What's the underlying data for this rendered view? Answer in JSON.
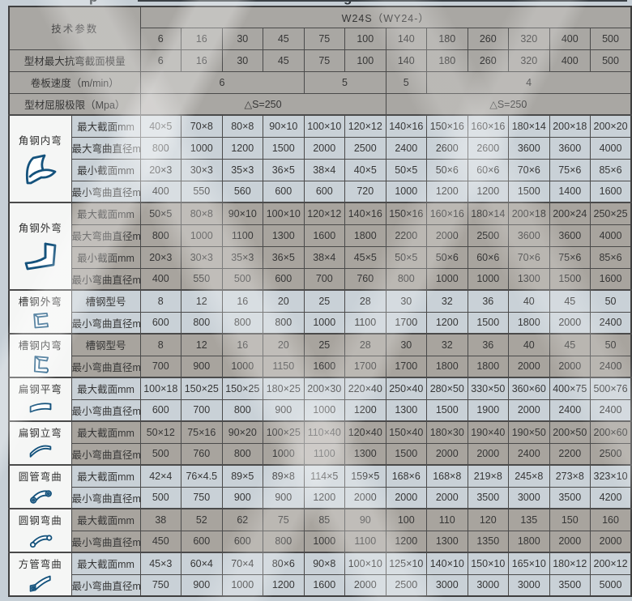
{
  "page": {
    "top_fragments": [
      "p",
      "g"
    ],
    "colors": {
      "background": "#c6cfd6",
      "head_cell": "#a9a7a3",
      "light_cell": "#c9d1d7",
      "dark_cell": "#a8a49e",
      "icon_cell": "#f5f6f5",
      "border": "#4a4a4a",
      "icon_stroke": "#14527c",
      "text": "#333333"
    }
  },
  "table": {
    "params_label": "技术参数",
    "series_header": "W24S（WY24-）",
    "model_columns": [
      "6",
      "16",
      "30",
      "45",
      "75",
      "100",
      "140",
      "180",
      "260",
      "320",
      "400",
      "500"
    ],
    "top_rows": [
      {
        "label": "型材最大抗弯截面模量",
        "type": "values",
        "values": [
          "6",
          "16",
          "30",
          "45",
          "75",
          "100",
          "140",
          "180",
          "260",
          "320",
          "400",
          "500"
        ]
      },
      {
        "label": "卷板速度（m/min）",
        "type": "spans",
        "spans": [
          {
            "value": "6",
            "cols": 4
          },
          {
            "value": "5",
            "cols": 2
          },
          {
            "value": "5",
            "cols": 1
          },
          {
            "value": "4",
            "cols": 5
          }
        ]
      },
      {
        "label": "型材屈服极限（Mpa）",
        "type": "spans",
        "spans": [
          {
            "value": "△S=250",
            "cols": 6
          },
          {
            "value": "△S=250",
            "cols": 6
          }
        ]
      }
    ],
    "sections": [
      {
        "title": "角钢内弯",
        "icon": "angle-steel-inner-bend-icon",
        "tone": "light",
        "rows": [
          {
            "label": "最大截面mm",
            "values": [
              "40×5",
              "70×8",
              "80×8",
              "90×10",
              "100×10",
              "120×12",
              "140×16",
              "150×16",
              "160×16",
              "180×14",
              "200×18",
              "200×20"
            ]
          },
          {
            "label": "最大弯曲直径mm",
            "values": [
              "800",
              "1000",
              "1200",
              "1500",
              "2000",
              "2500",
              "2400",
              "2600",
              "2600",
              "3600",
              "3600",
              "4000"
            ]
          },
          {
            "label": "最小截面mm",
            "values": [
              "20×3",
              "30×3",
              "35×3",
              "36×5",
              "38×4",
              "40×5",
              "50×5",
              "50×6",
              "60×6",
              "70×6",
              "75×6",
              "85×6"
            ]
          },
          {
            "label": "最小弯曲直径mm",
            "values": [
              "400",
              "550",
              "560",
              "600",
              "600",
              "720",
              "1000",
              "1200",
              "1200",
              "1500",
              "1400",
              "1600"
            ]
          }
        ]
      },
      {
        "title": "角钢外弯",
        "icon": "angle-steel-outer-bend-icon",
        "tone": "dark",
        "rows": [
          {
            "label": "最大截面mm",
            "values": [
              "50×5",
              "80×8",
              "90×10",
              "100×10",
              "120×12",
              "140×16",
              "150×16",
              "160×16",
              "180×14",
              "200×18",
              "200×24",
              "250×25"
            ]
          },
          {
            "label": "最大弯曲直径mm",
            "values": [
              "800",
              "1000",
              "1100",
              "1300",
              "1600",
              "1800",
              "2200",
              "2000",
              "2500",
              "3600",
              "3600",
              "4000"
            ]
          },
          {
            "label": "最小截面mm",
            "values": [
              "20×3",
              "30×3",
              "35×3",
              "36×5",
              "38×4",
              "45×5",
              "50×5",
              "50×6",
              "60×6",
              "70×6",
              "75×6",
              "85×6"
            ]
          },
          {
            "label": "最小弯曲直径mm",
            "values": [
              "400",
              "550",
              "500",
              "600",
              "700",
              "760",
              "800",
              "1000",
              "1000",
              "1300",
              "1500",
              "1600"
            ]
          }
        ]
      },
      {
        "title": "槽钢外弯",
        "icon": "channel-steel-outer-bend-icon",
        "tone": "light",
        "rows": [
          {
            "label": "槽钢型号",
            "values": [
              "8",
              "12",
              "16",
              "20",
              "25",
              "28",
              "30",
              "32",
              "36",
              "40",
              "45",
              "50"
            ]
          },
          {
            "label": "最小弯曲直径mm",
            "values": [
              "600",
              "800",
              "800",
              "800",
              "1000",
              "1100",
              "1700",
              "1200",
              "1500",
              "1800",
              "2000",
              "2400"
            ]
          }
        ]
      },
      {
        "title": "槽钢内弯",
        "icon": "channel-steel-inner-bend-icon",
        "tone": "dark",
        "rows": [
          {
            "label": "槽钢型号",
            "values": [
              "8",
              "12",
              "16",
              "20",
              "25",
              "28",
              "30",
              "32",
              "36",
              "40",
              "45",
              "50"
            ]
          },
          {
            "label": "最小弯曲直径mm",
            "values": [
              "700",
              "900",
              "1000",
              "1150",
              "1600",
              "1700",
              "1700",
              "1800",
              "1800",
              "2000",
              "2000",
              "2400"
            ]
          }
        ]
      },
      {
        "title": "扁钢平弯",
        "icon": "flat-steel-flat-bend-icon",
        "tone": "light",
        "rows": [
          {
            "label": "最大截面mm",
            "values": [
              "100×18",
              "150×25",
              "150×25",
              "180×25",
              "200×30",
              "220×40",
              "250×40",
              "280×50",
              "330×50",
              "360×60",
              "400×75",
              "500×76"
            ]
          },
          {
            "label": "最小弯曲直径mm",
            "values": [
              "600",
              "700",
              "800",
              "900",
              "1000",
              "1200",
              "1300",
              "1500",
              "1900",
              "2000",
              "2400",
              "2400"
            ]
          }
        ]
      },
      {
        "title": "扁钢立弯",
        "icon": "flat-steel-edge-bend-icon",
        "tone": "dark",
        "rows": [
          {
            "label": "最大截面mm",
            "values": [
              "50×12",
              "75×16",
              "90×20",
              "100×25",
              "110×40",
              "120×40",
              "150×40",
              "180×30",
              "190×40",
              "190×50",
              "200×50",
              "200×60"
            ]
          },
          {
            "label": "最小弯曲直径mm",
            "values": [
              "500",
              "760",
              "800",
              "1000",
              "1100",
              "1300",
              "1500",
              "2000",
              "2000",
              "2400",
              "2200",
              "2500"
            ]
          }
        ]
      },
      {
        "title": "圆管弯曲",
        "icon": "round-tube-bend-icon",
        "tone": "light",
        "rows": [
          {
            "label": "最大截面mm",
            "values": [
              "42×4",
              "76×4.5",
              "89×5",
              "89×8",
              "114×5",
              "159×5",
              "168×6",
              "168×8",
              "219×8",
              "245×8",
              "273×8",
              "323×10"
            ]
          },
          {
            "label": "最小弯曲直径mm",
            "values": [
              "500",
              "750",
              "900",
              "900",
              "1200",
              "2000",
              "2000",
              "2000",
              "3500",
              "3000",
              "3500",
              "4200"
            ]
          }
        ]
      },
      {
        "title": "圆钢弯曲",
        "icon": "round-bar-bend-icon",
        "tone": "dark",
        "rows": [
          {
            "label": "最大截面mm",
            "values": [
              "38",
              "52",
              "62",
              "75",
              "85",
              "90",
              "100",
              "110",
              "120",
              "135",
              "150",
              "160"
            ]
          },
          {
            "label": "最小弯曲直径mm",
            "values": [
              "450",
              "600",
              "600",
              "800",
              "1000",
              "1100",
              "1200",
              "1300",
              "1350",
              "1800",
              "2000",
              "2000"
            ]
          }
        ]
      },
      {
        "title": "方管弯曲",
        "icon": "square-tube-bend-icon",
        "tone": "light",
        "rows": [
          {
            "label": "最大截面mm",
            "values": [
              "45×3",
              "60×4",
              "70×4",
              "80×6",
              "90×8",
              "100×10",
              "125×10",
              "140×10",
              "150×10",
              "165×10",
              "180×12",
              "200×12"
            ]
          },
          {
            "label": "最小弯曲直径mm",
            "values": [
              "750",
              "900",
              "1000",
              "1200",
              "1600",
              "2000",
              "2500",
              "3000",
              "3000",
              "3000",
              "3500",
              "5000"
            ]
          }
        ]
      }
    ]
  }
}
